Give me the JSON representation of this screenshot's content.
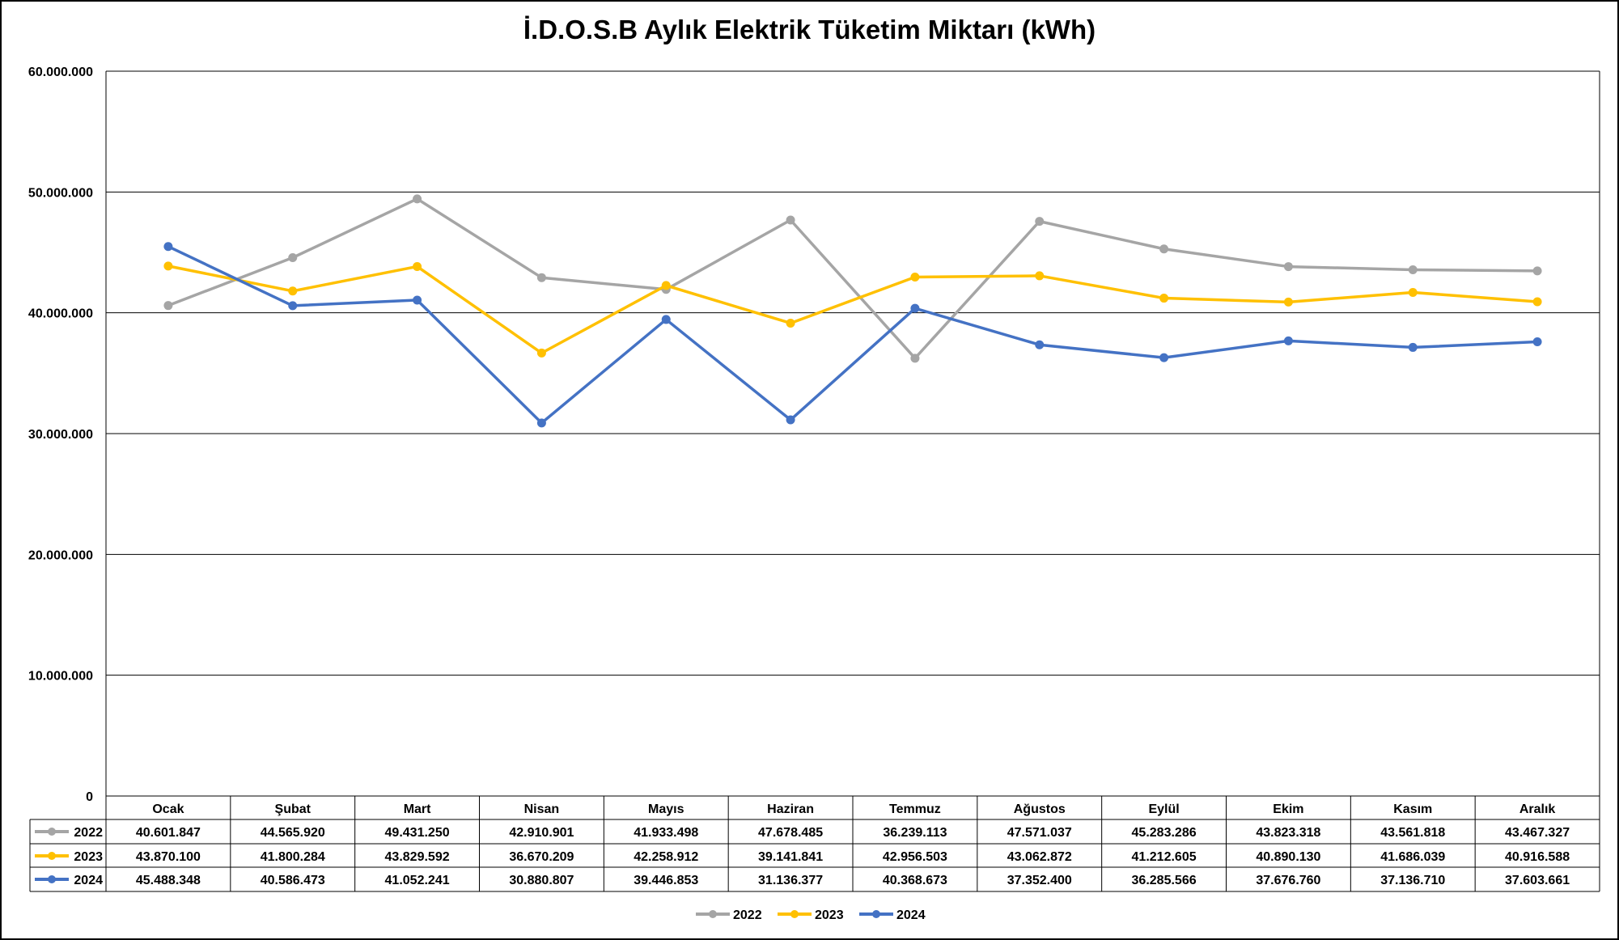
{
  "chart_data": {
    "type": "line",
    "title": "İ.D.O.S.B Aylık Elektrik Tüketim Miktarı (kWh)",
    "xlabel": "",
    "ylabel": "",
    "ylim": [
      0,
      60000000
    ],
    "yticks": [
      0,
      10000000,
      20000000,
      30000000,
      40000000,
      50000000,
      60000000
    ],
    "ytick_labels": [
      "0",
      "10.000.000",
      "20.000.000",
      "30.000.000",
      "40.000.000",
      "50.000.000",
      "60.000.000"
    ],
    "grid": true,
    "legend": "bottom-center",
    "categories": [
      "Ocak",
      "Şubat",
      "Mart",
      "Nisan",
      "Mayıs",
      "Haziran",
      "Temmuz",
      "Ağustos",
      "Eylül",
      "Ekim",
      "Kasım",
      "Aralık"
    ],
    "series": [
      {
        "name": "2022",
        "color": "#A5A5A5",
        "values": [
          40601847,
          44565920,
          49431250,
          42910901,
          41933498,
          47678485,
          36239113,
          47571037,
          45283286,
          43823318,
          43561818,
          43467327
        ],
        "labels": [
          "40.601.847",
          "44.565.920",
          "49.431.250",
          "42.910.901",
          "41.933.498",
          "47.678.485",
          "36.239.113",
          "47.571.037",
          "45.283.286",
          "43.823.318",
          "43.561.818",
          "43.467.327"
        ]
      },
      {
        "name": "2023",
        "color": "#FFC000",
        "values": [
          43870100,
          41800284,
          43829592,
          36670209,
          42258912,
          39141841,
          42956503,
          43062872,
          41212605,
          40890130,
          41686039,
          40916588
        ],
        "labels": [
          "43.870.100",
          "41.800.284",
          "43.829.592",
          "36.670.209",
          "42.258.912",
          "39.141.841",
          "42.956.503",
          "43.062.872",
          "41.212.605",
          "40.890.130",
          "41.686.039",
          "40.916.588"
        ]
      },
      {
        "name": "2024",
        "color": "#4472C4",
        "values": [
          45488348,
          40586473,
          41052241,
          30880807,
          39446853,
          31136377,
          40368673,
          37352400,
          36285566,
          37676760,
          37136710,
          37603661
        ],
        "labels": [
          "45.488.348",
          "40.586.473",
          "41.052.241",
          "30.880.807",
          "39.446.853",
          "31.136.377",
          "40.368.673",
          "37.352.400",
          "36.285.566",
          "37.676.760",
          "37.136.710",
          "37.603.661"
        ]
      }
    ]
  }
}
